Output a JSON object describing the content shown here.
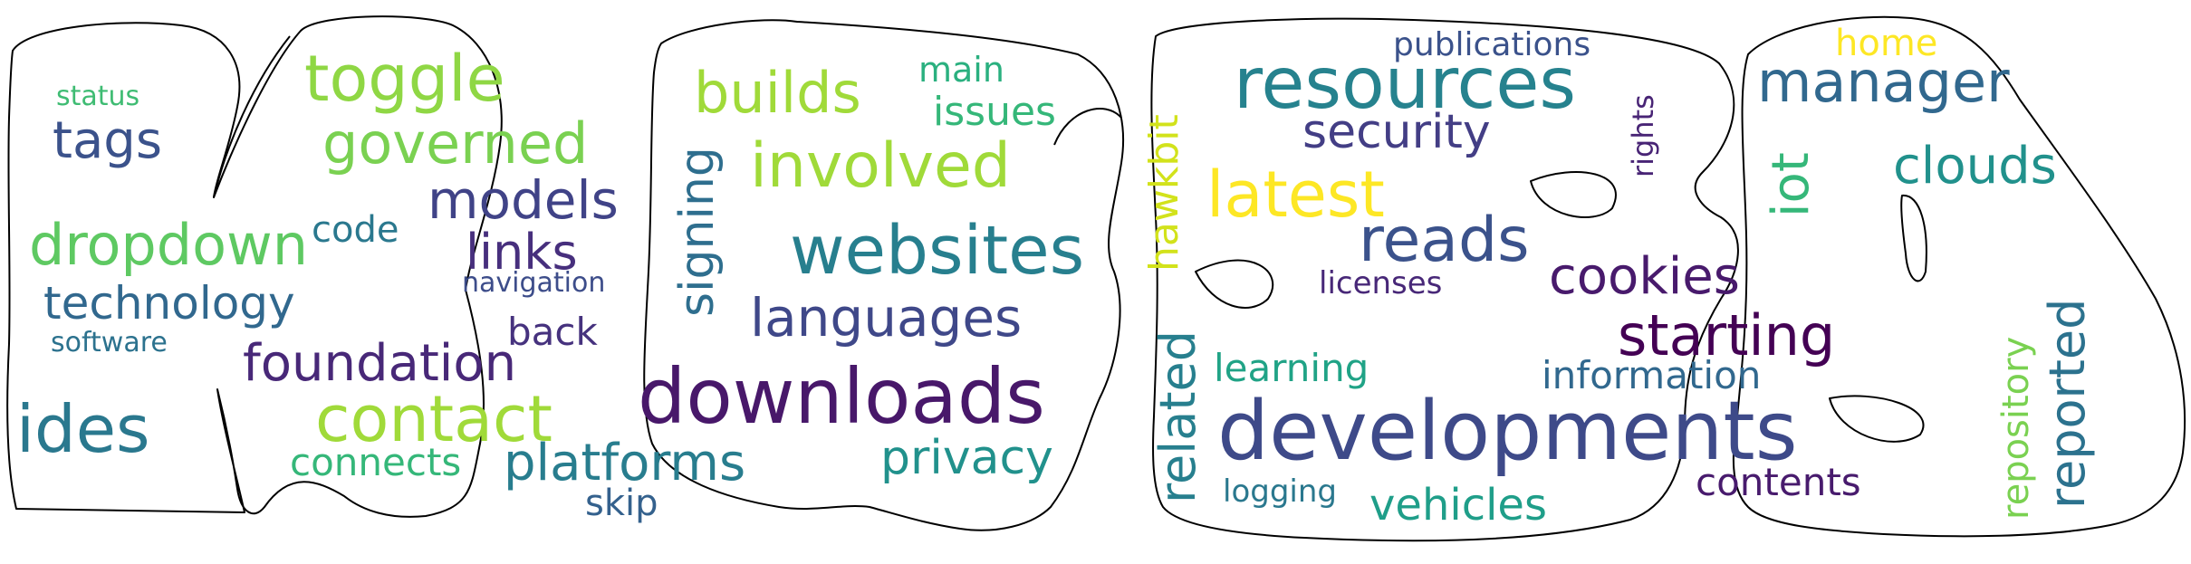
{
  "words": {
    "toggle": "toggle",
    "governed": "governed",
    "models": "models",
    "links": "links",
    "navigation": "navigation",
    "back": "back",
    "code": "code",
    "status": "status",
    "tags": "tags",
    "dropdown": "dropdown",
    "technology": "technology",
    "software": "software",
    "foundation": "foundation",
    "ides": "ides",
    "contact": "contact",
    "connects": "connects",
    "platforms": "platforms",
    "skip": "skip",
    "builds": "builds",
    "main": "main",
    "issues": "issues",
    "involved": "involved",
    "signing": "signing",
    "websites": "websites",
    "languages": "languages",
    "downloads": "downloads",
    "privacy": "privacy",
    "hawkbit": "hawkbit",
    "related": "related",
    "publications": "publications",
    "resources": "resources",
    "security": "security",
    "rights": "rights",
    "latest": "latest",
    "reads": "reads",
    "licenses": "licenses",
    "cookies": "cookies",
    "starting": "starting",
    "information": "information",
    "learning": "learning",
    "developments": "developments",
    "logging": "logging",
    "vehicles": "vehicles",
    "contents": "contents",
    "home": "home",
    "manager": "manager",
    "iot": "iot",
    "clouds": "clouds",
    "repository": "repository",
    "reported": "reported"
  },
  "colors": {
    "background": "#ffffff",
    "outline": "#000000",
    "palette": [
      "#440154",
      "#3b528b",
      "#21918c",
      "#5ec962",
      "#fde725"
    ]
  }
}
